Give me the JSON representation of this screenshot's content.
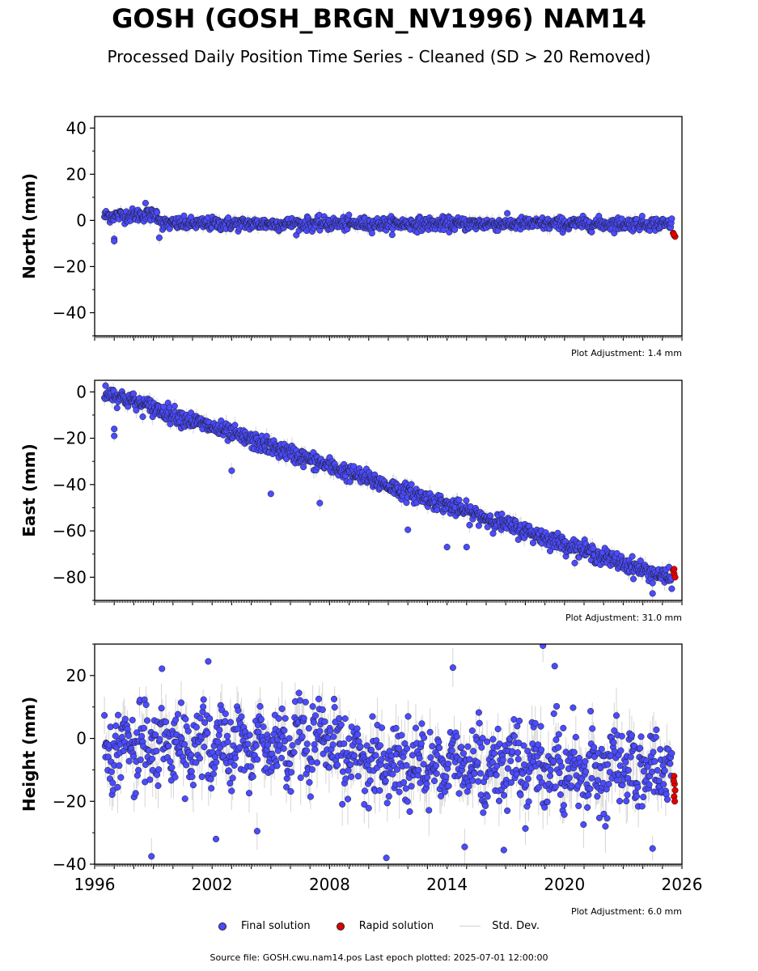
{
  "title": "GOSH (GOSH_BRGN_NV1996) NAM14",
  "subtitle": "Processed Daily Position Time Series - Cleaned (SD > 20 Removed)",
  "legend": {
    "final": "Final solution",
    "rapid": "Rapid solution",
    "stddev": "Std. Dev."
  },
  "footer": "Source file: GOSH.cwu.nam14.pos  Last epoch plotted: 2025-07-01 12:00:00",
  "colors": {
    "final": "#4b4bff",
    "rapid": "#e00000",
    "stddev": "#c8c8c8",
    "edge": "#1a1a1a"
  },
  "chart_data": [
    {
      "type": "scatter",
      "ylabel": "North (mm)",
      "ylim": [
        -50,
        45
      ],
      "yticks": [
        40,
        20,
        0,
        -20,
        -40
      ],
      "xlim": [
        1996,
        2026
      ],
      "adjustment": "Plot Adjustment: 1.4 mm",
      "series": [
        {
          "name": "Final solution",
          "trend": [
            [
              1996.5,
              2.0
            ],
            [
              1999.2,
              2.5
            ],
            [
              1999.5,
              -1.5
            ],
            [
              2025.5,
              -1.5
            ]
          ],
          "noise": 1.4,
          "stddev": 2.0,
          "outliers": [
            [
              1997.0,
              -8.0
            ],
            [
              1997.0,
              -9.0
            ],
            [
              1999.3,
              -7.5
            ],
            [
              1998.6,
              7.5
            ]
          ]
        },
        {
          "name": "Rapid solution",
          "points": [
            [
              2025.55,
              -5.5
            ],
            [
              2025.6,
              -6.5
            ],
            [
              2025.65,
              -7.0
            ],
            [
              2025.58,
              -6.0
            ]
          ]
        }
      ]
    },
    {
      "type": "scatter",
      "ylabel": "East (mm)",
      "ylim": [
        -90,
        5
      ],
      "yticks": [
        0,
        -20,
        -40,
        -60,
        -80
      ],
      "xlim": [
        1996,
        2026
      ],
      "adjustment": "Plot Adjustment: 31.0 mm",
      "series": [
        {
          "name": "Final solution",
          "trend": [
            [
              1996.5,
              0.0
            ],
            [
              2025.5,
              -81.0
            ]
          ],
          "noise": 1.8,
          "stddev": 2.5,
          "outliers": [
            [
              1997.0,
              -19.0
            ],
            [
              1997.0,
              -16.0
            ],
            [
              2003.0,
              -34.0
            ],
            [
              2005.0,
              -44.0
            ],
            [
              2007.5,
              -48.0
            ],
            [
              2012.0,
              -59.5
            ],
            [
              2014.0,
              -67.0
            ],
            [
              2015.0,
              -67.0
            ],
            [
              2024.5,
              -87.0
            ]
          ]
        },
        {
          "name": "Rapid solution",
          "points": [
            [
              2025.55,
              -77.0
            ],
            [
              2025.6,
              -78.5
            ],
            [
              2025.65,
              -80.0
            ],
            [
              2025.6,
              -76.5
            ]
          ]
        }
      ]
    },
    {
      "type": "scatter",
      "ylabel": "Height (mm)",
      "ylim": [
        -40,
        30
      ],
      "yticks": [
        20,
        0,
        -20,
        -40
      ],
      "xlim": [
        1996,
        2026
      ],
      "xticks": [
        1996,
        2002,
        2008,
        2014,
        2020,
        2026
      ],
      "adjustment": "Plot Adjustment: 6.0 mm",
      "series": [
        {
          "name": "Final solution",
          "trend": [
            [
              1996.5,
              -2.0
            ],
            [
              2008.0,
              -3.0
            ],
            [
              2011.0,
              -8.0
            ],
            [
              2025.5,
              -10.0
            ]
          ],
          "noise": 6.0,
          "stddev": 6.0,
          "outliers": [
            [
              1998.9,
              -37.5
            ],
            [
              2002.2,
              -32.0
            ],
            [
              2004.3,
              -29.5
            ],
            [
              2010.9,
              -38.0
            ],
            [
              2014.9,
              -34.5
            ],
            [
              2016.9,
              -35.5
            ],
            [
              2018.9,
              29.5
            ],
            [
              2019.5,
              23.0
            ],
            [
              2014.3,
              22.5
            ],
            [
              2001.8,
              24.5
            ],
            [
              2024.5,
              -35.0
            ]
          ]
        },
        {
          "name": "Rapid solution",
          "points": [
            [
              2025.6,
              -12.0
            ],
            [
              2025.62,
              -14.5
            ],
            [
              2025.65,
              -16.5
            ],
            [
              2025.6,
              -18.5
            ],
            [
              2025.63,
              -20.0
            ],
            [
              2025.58,
              -13.5
            ]
          ]
        }
      ]
    }
  ]
}
